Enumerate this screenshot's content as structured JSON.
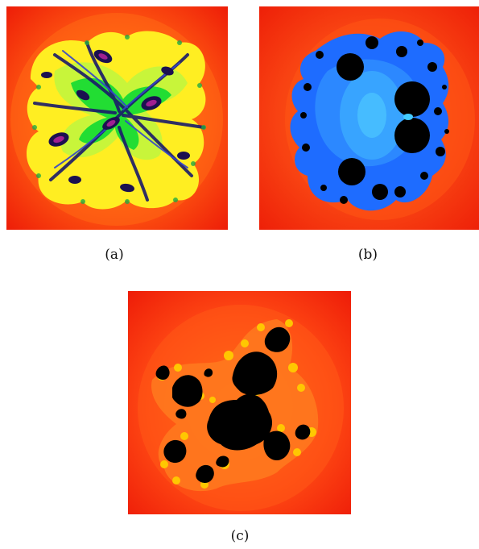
{
  "figure": {
    "panels": [
      {
        "id": "a",
        "caption": "(a)",
        "dominant_colors": [
          "#f0280a",
          "#ffee00",
          "#22dd22",
          "#1122aa",
          "#7a1a8a"
        ]
      },
      {
        "id": "b",
        "caption": "(b)",
        "dominant_colors": [
          "#f0280a",
          "#1e6cff",
          "#38a8ff",
          "#000000"
        ]
      },
      {
        "id": "c",
        "caption": "(c)",
        "dominant_colors": [
          "#f0280a",
          "#ff7a10",
          "#ffcc00",
          "#000000"
        ]
      }
    ]
  }
}
